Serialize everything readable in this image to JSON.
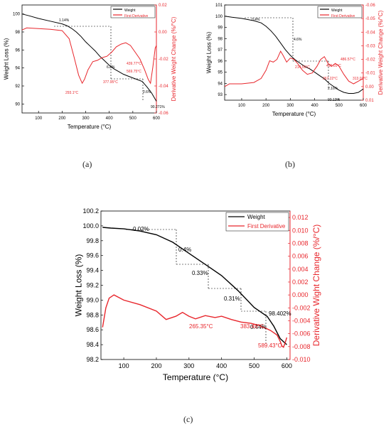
{
  "chart_data": [
    {
      "type": "line",
      "caption": "(a)",
      "xlabel": "Temperature (°C)",
      "ylabel": "Weight Loss (%)",
      "y2label": "Derivative Weight Change (%/°C)",
      "xlim": [
        30,
        600
      ],
      "ylim": [
        89,
        101
      ],
      "y2lim": [
        -0.06,
        0.02
      ],
      "xticks": [
        100,
        200,
        300,
        400,
        500,
        600
      ],
      "yticks": [
        90,
        92,
        94,
        96,
        98,
        100
      ],
      "y2ticks": [
        0.02,
        0.0,
        -0.02,
        -0.04,
        -0.06
      ],
      "y2tick_labels": [
        "0.02",
        "0.00",
        "-0.02",
        "-0.04",
        "-0.06"
      ],
      "legend_position": "top-right",
      "series": [
        {
          "name": "Weight",
          "axis": "y",
          "color": "#000000",
          "x": [
            30,
            60,
            100,
            150,
            200,
            220,
            240,
            260,
            280,
            300,
            320,
            340,
            360,
            380,
            400,
            420,
            440,
            460,
            480,
            500,
            520,
            540,
            560,
            580,
            600
          ],
          "y": [
            100.0,
            99.8,
            99.5,
            99.2,
            98.9,
            98.7,
            98.4,
            98.0,
            97.5,
            96.9,
            96.4,
            95.9,
            95.3,
            94.8,
            94.3,
            93.9,
            93.6,
            93.3,
            93.1,
            92.9,
            92.7,
            92.5,
            91.9,
            91.2,
            90.3
          ]
        },
        {
          "name": "First Derivative",
          "axis": "y2",
          "color": "#e8262c",
          "x": [
            30,
            50,
            100,
            150,
            200,
            230,
            250,
            270,
            285,
            295,
            310,
            330,
            350,
            370,
            390,
            410,
            430,
            450,
            470,
            490,
            510,
            530,
            550,
            565,
            575,
            585,
            595,
            600
          ],
          "y": [
            0.0015,
            0.003,
            0.0025,
            0.002,
            0.001,
            -0.005,
            -0.018,
            -0.032,
            -0.038,
            -0.035,
            -0.028,
            -0.022,
            -0.021,
            -0.019,
            -0.018,
            -0.015,
            -0.011,
            -0.009,
            -0.008,
            -0.01,
            -0.015,
            -0.02,
            -0.028,
            -0.035,
            -0.038,
            -0.026,
            -0.012,
            -0.01
          ]
        }
      ],
      "annotations": [
        {
          "text": "1.14%",
          "color": "#000000"
        },
        {
          "text": "6.8%",
          "color": "#000000"
        },
        {
          "text": "2.6%",
          "color": "#000000"
        },
        {
          "text": "90.271%",
          "color": "#000000"
        },
        {
          "text": "293.1°C",
          "color": "#e8262c"
        },
        {
          "text": "377.95°C",
          "color": "#e8262c"
        },
        {
          "text": "439.77°C",
          "color": "#e8262c"
        },
        {
          "text": "569.75°C",
          "color": "#e8262c"
        }
      ]
    },
    {
      "type": "line",
      "caption": "(b)",
      "xlabel": "Temperature (°C)",
      "ylabel": "Weight Loss (%)",
      "y2label": "Derivative Weight Change (%/°C)",
      "xlim": [
        30,
        600
      ],
      "ylim": [
        92.5,
        101
      ],
      "y2lim": [
        -0.06,
        0.01
      ],
      "xticks": [
        100,
        200,
        300,
        400,
        500,
        600
      ],
      "yticks": [
        93,
        94,
        95,
        96,
        97,
        98,
        99,
        100,
        101
      ],
      "y2ticks": [
        -0.06,
        -0.05,
        -0.04,
        -0.03,
        -0.02,
        -0.01,
        0.0,
        0.01
      ],
      "y2tick_labels": [
        "-0.06",
        "-0.05",
        "-0.04",
        "-0.03",
        "-0.02",
        "-0.01",
        "0.00",
        "0.01"
      ],
      "y2_inverted": true,
      "legend_position": "top-right",
      "series": [
        {
          "name": "Weight",
          "axis": "y",
          "color": "#000000",
          "x": [
            30,
            60,
            100,
            150,
            180,
            200,
            220,
            240,
            260,
            280,
            300,
            320,
            340,
            360,
            380,
            400,
            420,
            440,
            460,
            480,
            500,
            520,
            540,
            560,
            580,
            600
          ],
          "y": [
            100.0,
            99.9,
            99.8,
            99.6,
            99.4,
            99.1,
            98.7,
            98.2,
            97.6,
            97.0,
            96.5,
            96.1,
            95.8,
            95.5,
            95.3,
            95.0,
            94.7,
            94.4,
            94.0,
            93.7,
            93.4,
            93.2,
            93.1,
            93.1,
            93.2,
            93.5
          ]
        },
        {
          "name": "First Derivative",
          "axis": "y2",
          "color": "#e8262c",
          "x": [
            30,
            50,
            100,
            150,
            180,
            200,
            215,
            230,
            245,
            260,
            270,
            285,
            300,
            315,
            330,
            350,
            370,
            390,
            410,
            425,
            440,
            455,
            470,
            485,
            500,
            520,
            540,
            560,
            580,
            600
          ],
          "y": [
            0.0,
            -0.002,
            -0.002,
            -0.003,
            -0.006,
            -0.012,
            -0.019,
            -0.018,
            -0.02,
            -0.026,
            -0.023,
            -0.018,
            -0.021,
            -0.02,
            -0.017,
            -0.012,
            -0.009,
            -0.01,
            -0.015,
            -0.02,
            -0.022,
            -0.017,
            -0.015,
            -0.017,
            -0.015,
            -0.009,
            -0.004,
            -0.002,
            -0.004,
            -0.006
          ]
        }
      ],
      "annotations": [
        {
          "text": "0.4%",
          "color": "#000000"
        },
        {
          "text": "4.6%",
          "color": "#000000"
        },
        {
          "text": "2.16%",
          "color": "#000000"
        },
        {
          "text": "93.13%",
          "color": "#000000"
        },
        {
          "text": "214.59°C",
          "color": "#e8262c"
        },
        {
          "text": "267.22°C",
          "color": "#e8262c"
        },
        {
          "text": "313.03°C",
          "color": "#e8262c"
        },
        {
          "text": "436.01°C",
          "color": "#e8262c"
        },
        {
          "text": "486.57°C",
          "color": "#e8262c"
        }
      ]
    },
    {
      "type": "line",
      "caption": "(c)",
      "xlabel": "Temperature (°C)",
      "ylabel": "Weight Loss (%)",
      "y2label": "Derivative Wight Change (%/°C)",
      "xlim": [
        30,
        610
      ],
      "ylim": [
        98.2,
        100.2
      ],
      "y2lim": [
        -0.01,
        0.013
      ],
      "xticks": [
        100,
        200,
        300,
        400,
        500,
        600
      ],
      "yticks": [
        98.2,
        98.4,
        98.6,
        98.8,
        99.0,
        99.2,
        99.4,
        99.6,
        99.8,
        100.0,
        100.2
      ],
      "ytick_labels": [
        "98.2",
        "98.4",
        "98.6",
        "98.8",
        "99.0",
        "99.2",
        "99.4",
        "99.6",
        "99.8",
        "100.0",
        "100.2"
      ],
      "y2ticks": [
        -0.01,
        -0.008,
        -0.006,
        -0.004,
        -0.002,
        0.0,
        0.002,
        0.004,
        0.006,
        0.008,
        0.01,
        0.012
      ],
      "y2tick_labels": [
        "-0.010",
        "-0.008",
        "-0.006",
        "-0.004",
        "-0.002",
        "0.000",
        "0.002",
        "0.004",
        "0.006",
        "0.008",
        "0.010",
        "0.012"
      ],
      "legend_position": "top-right",
      "series": [
        {
          "name": "Weight",
          "axis": "y",
          "color": "#000000",
          "x": [
            35,
            60,
            100,
            150,
            200,
            250,
            300,
            350,
            400,
            450,
            500,
            520,
            540,
            560,
            580,
            600
          ],
          "y": [
            99.98,
            99.97,
            99.96,
            99.93,
            99.88,
            99.78,
            99.63,
            99.48,
            99.33,
            99.13,
            98.9,
            98.84,
            98.78,
            98.65,
            98.48,
            98.4
          ]
        },
        {
          "name": "First Derivative",
          "axis": "y2",
          "color": "#e8262c",
          "x": [
            35,
            45,
            55,
            70,
            100,
            150,
            200,
            230,
            260,
            280,
            300,
            320,
            350,
            380,
            400,
            430,
            460,
            490,
            520,
            550,
            570,
            580,
            585,
            590,
            595,
            600
          ],
          "y": [
            -0.005,
            -0.002,
            -0.0005,
            0.0,
            -0.0008,
            -0.0015,
            -0.0025,
            -0.0038,
            -0.0033,
            -0.0027,
            -0.0033,
            -0.0037,
            -0.0032,
            -0.0035,
            -0.0033,
            -0.0038,
            -0.0042,
            -0.0044,
            -0.0048,
            -0.0055,
            -0.0062,
            -0.0072,
            -0.0079,
            -0.0081,
            -0.0074,
            -0.0066
          ]
        }
      ],
      "annotations": [
        {
          "text": "0.02%",
          "color": "#000000"
        },
        {
          "text": "0.4%",
          "color": "#000000"
        },
        {
          "text": "0.33%",
          "color": "#000000"
        },
        {
          "text": "0.31%",
          "color": "#000000"
        },
        {
          "text": "98.402%",
          "color": "#000000"
        },
        {
          "text": "0.44%",
          "color": "#000000"
        },
        {
          "text": "265.35°C",
          "color": "#e8262c"
        },
        {
          "text": "383.45°C",
          "color": "#e8262c"
        },
        {
          "text": "589.43°C",
          "color": "#e8262c"
        }
      ]
    }
  ]
}
